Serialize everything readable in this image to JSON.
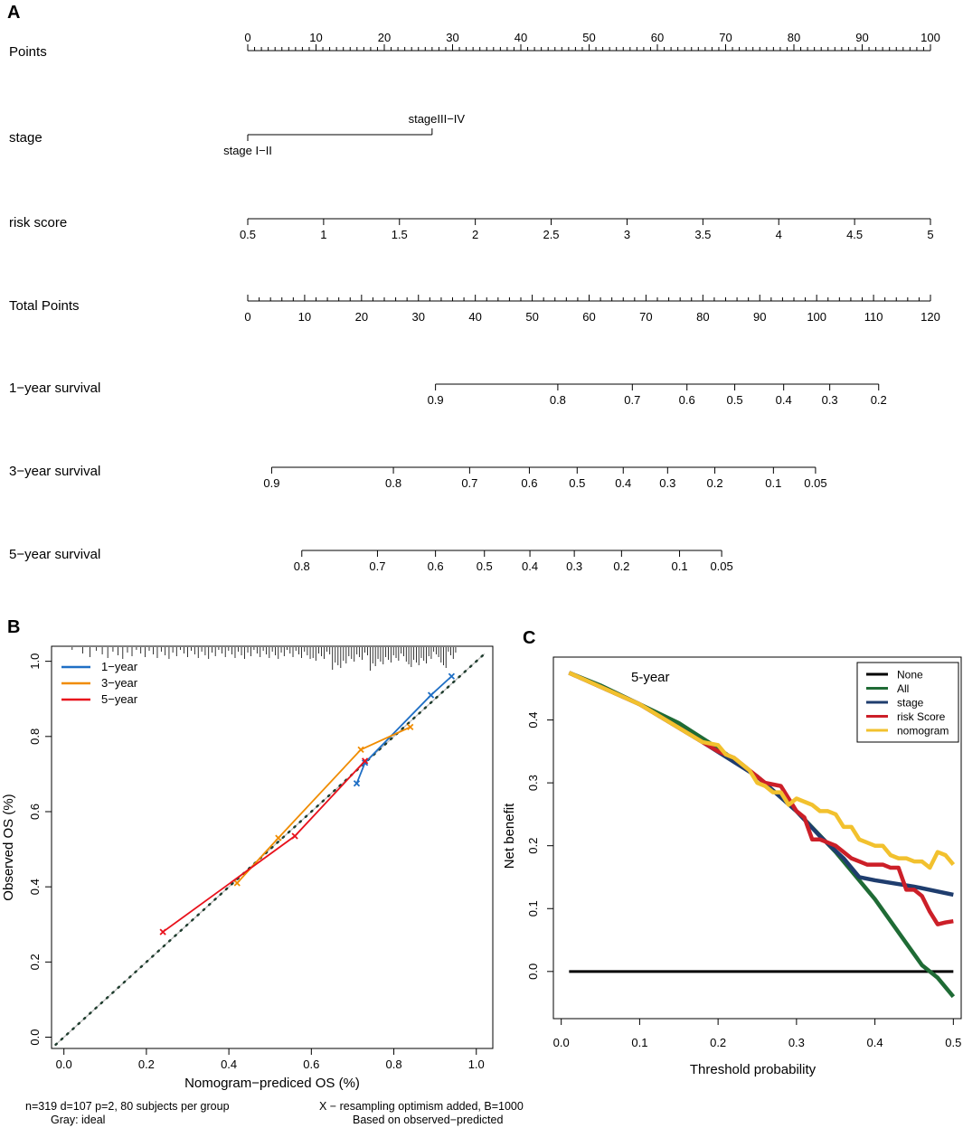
{
  "panel_labels": {
    "a": "A",
    "b": "B",
    "c": "C"
  },
  "chart_data": [
    {
      "type": "nomogram",
      "panel": "A",
      "rows": [
        {
          "label": "Points",
          "min": 0,
          "max": 100,
          "major": [
            0,
            10,
            20,
            30,
            40,
            50,
            60,
            70,
            80,
            90,
            100
          ],
          "minor_step": 1
        },
        {
          "label": "stage",
          "levels": [
            {
              "name": "stage I−II",
              "points": 0
            },
            {
              "name": "stageIII−IV",
              "points": 27
            }
          ]
        },
        {
          "label": "risk score",
          "ticks": [
            {
              "v": "0.5",
              "p": 0
            },
            {
              "v": "1",
              "p": 11.11
            },
            {
              "v": "1.5",
              "p": 22.22
            },
            {
              "v": "2",
              "p": 33.33
            },
            {
              "v": "2.5",
              "p": 44.44
            },
            {
              "v": "3",
              "p": 55.56
            },
            {
              "v": "3.5",
              "p": 66.67
            },
            {
              "v": "4",
              "p": 77.78
            },
            {
              "v": "4.5",
              "p": 88.89
            },
            {
              "v": "5",
              "p": 100
            }
          ]
        },
        {
          "label": "Total Points",
          "min": 0,
          "max": 120,
          "major": [
            0,
            10,
            20,
            30,
            40,
            50,
            60,
            70,
            80,
            90,
            100,
            110,
            120
          ],
          "minor_step": 2
        },
        {
          "label": "1−year survival",
          "ticks": [
            {
              "v": "0.9",
              "tp": 33
            },
            {
              "v": "0.8",
              "tp": 54.5
            },
            {
              "v": "0.7",
              "tp": 67.6
            },
            {
              "v": "0.6",
              "tp": 77.2
            },
            {
              "v": "0.5",
              "tp": 85.6
            },
            {
              "v": "0.4",
              "tp": 94.2
            },
            {
              "v": "0.3",
              "tp": 102.3
            },
            {
              "v": "0.2",
              "tp": 110.9
            }
          ]
        },
        {
          "label": "3−year survival",
          "ticks": [
            {
              "v": "0.9",
              "tp": 4.2
            },
            {
              "v": "0.8",
              "tp": 25.6
            },
            {
              "v": "0.7",
              "tp": 39
            },
            {
              "v": "0.6",
              "tp": 49.5
            },
            {
              "v": "0.5",
              "tp": 57.9
            },
            {
              "v": "0.4",
              "tp": 66
            },
            {
              "v": "0.3",
              "tp": 73.8
            },
            {
              "v": "0.2",
              "tp": 82.1
            },
            {
              "v": "0.1",
              "tp": 92.4
            },
            {
              "v": "0.05",
              "tp": 99.8
            }
          ]
        },
        {
          "label": "5−year survival",
          "ticks": [
            {
              "v": "0.8",
              "tp": 9.5
            },
            {
              "v": "0.7",
              "tp": 22.8
            },
            {
              "v": "0.6",
              "tp": 33
            },
            {
              "v": "0.5",
              "tp": 41.6
            },
            {
              "v": "0.4",
              "tp": 49.6
            },
            {
              "v": "0.3",
              "tp": 57.4
            },
            {
              "v": "0.2",
              "tp": 65.7
            },
            {
              "v": "0.1",
              "tp": 75.9
            },
            {
              "v": "0.05",
              "tp": 83.3
            }
          ]
        }
      ]
    },
    {
      "type": "line",
      "panel": "B",
      "xlabel": "Nomogram−prediced OS (%)",
      "ylabel": "Observed OS (%)",
      "xlim": [
        -0.03,
        1.04
      ],
      "ylim": [
        -0.03,
        1.04
      ],
      "xticks": [
        "0.0",
        "0.2",
        "0.4",
        "0.6",
        "0.8",
        "1.0"
      ],
      "yticks": [
        "0.0",
        "0.2",
        "0.4",
        "0.6",
        "0.8",
        "1.0"
      ],
      "ideal_line": "diagonal",
      "series": [
        {
          "name": "1−year",
          "color": "#1f6fc5",
          "x": [
            0.71,
            0.73,
            0.89,
            0.94
          ],
          "y": [
            0.675,
            0.73,
            0.91,
            0.96
          ]
        },
        {
          "name": "3−year",
          "color": "#f08c00",
          "x": [
            0.42,
            0.52,
            0.72,
            0.84
          ],
          "y": [
            0.41,
            0.53,
            0.765,
            0.825
          ]
        },
        {
          "name": "5−year",
          "color": "#e8111b",
          "x": [
            0.24,
            0.56,
            0.73
          ],
          "y": [
            0.28,
            0.535,
            0.735
          ]
        }
      ],
      "footnotes": {
        "left1": "n=319 d=107 p=2, 80 subjects per group",
        "left2": "Gray: ideal",
        "right1": "X − resampling optimism added, B=1000",
        "right2": "Based on observed−predicted"
      }
    },
    {
      "type": "line",
      "panel": "C",
      "title": "5-year",
      "xlabel": "Threshold probability",
      "ylabel": "Net benefit",
      "xlim": [
        -0.01,
        0.51
      ],
      "ylim": [
        -0.075,
        0.5
      ],
      "xticks": [
        "0.0",
        "0.1",
        "0.2",
        "0.3",
        "0.4",
        "0.5"
      ],
      "yticks": [
        "0.0",
        "0.1",
        "0.2",
        "0.3",
        "0.4"
      ],
      "legend_position": "top-right",
      "series": [
        {
          "name": "None",
          "color": "#000000",
          "x": [
            0.01,
            0.5
          ],
          "y": [
            0,
            0
          ]
        },
        {
          "name": "All",
          "color": "#1f6b35",
          "x": [
            0.01,
            0.05,
            0.1,
            0.15,
            0.2,
            0.25,
            0.3,
            0.35,
            0.38,
            0.4,
            0.42,
            0.44,
            0.46,
            0.48,
            0.5
          ],
          "y": [
            0.475,
            0.455,
            0.425,
            0.395,
            0.355,
            0.31,
            0.255,
            0.19,
            0.145,
            0.115,
            0.08,
            0.045,
            0.01,
            -0.01,
            -0.04
          ]
        },
        {
          "name": "stage",
          "color": "#1f3d6e",
          "x": [
            0.01,
            0.1,
            0.18,
            0.25,
            0.3,
            0.33,
            0.36,
            0.38,
            0.4,
            0.45,
            0.5
          ],
          "y": [
            0.475,
            0.425,
            0.365,
            0.31,
            0.255,
            0.215,
            0.18,
            0.15,
            0.145,
            0.135,
            0.122
          ]
        },
        {
          "name": "risk Score",
          "color": "#cc1f28",
          "x": [
            0.01,
            0.1,
            0.18,
            0.2,
            0.22,
            0.24,
            0.26,
            0.28,
            0.3,
            0.31,
            0.32,
            0.33,
            0.34,
            0.35,
            0.36,
            0.37,
            0.38,
            0.39,
            0.4,
            0.41,
            0.42,
            0.43,
            0.44,
            0.45,
            0.46,
            0.47,
            0.48,
            0.49,
            0.5
          ],
          "y": [
            0.475,
            0.425,
            0.365,
            0.35,
            0.34,
            0.32,
            0.3,
            0.295,
            0.255,
            0.245,
            0.21,
            0.21,
            0.205,
            0.2,
            0.19,
            0.18,
            0.175,
            0.17,
            0.17,
            0.17,
            0.165,
            0.165,
            0.13,
            0.13,
            0.12,
            0.095,
            0.075,
            0.078,
            0.08
          ]
        },
        {
          "name": "nomogram",
          "color": "#f2c12e",
          "x": [
            0.01,
            0.1,
            0.18,
            0.2,
            0.21,
            0.22,
            0.23,
            0.24,
            0.25,
            0.26,
            0.27,
            0.28,
            0.29,
            0.3,
            0.31,
            0.32,
            0.33,
            0.34,
            0.35,
            0.36,
            0.37,
            0.38,
            0.39,
            0.4,
            0.41,
            0.42,
            0.43,
            0.44,
            0.45,
            0.46,
            0.47,
            0.48,
            0.49,
            0.5
          ],
          "y": [
            0.475,
            0.425,
            0.365,
            0.36,
            0.345,
            0.34,
            0.33,
            0.32,
            0.3,
            0.295,
            0.285,
            0.285,
            0.265,
            0.275,
            0.27,
            0.265,
            0.255,
            0.255,
            0.25,
            0.23,
            0.23,
            0.21,
            0.205,
            0.2,
            0.2,
            0.185,
            0.18,
            0.18,
            0.175,
            0.175,
            0.165,
            0.19,
            0.185,
            0.17
          ]
        }
      ]
    }
  ]
}
